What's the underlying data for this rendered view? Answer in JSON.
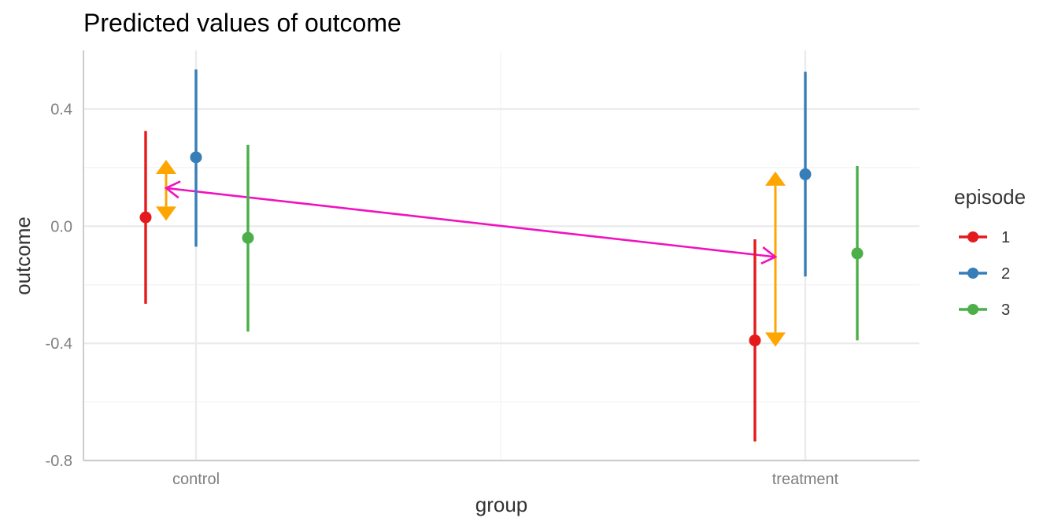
{
  "chart_data": {
    "type": "scatter",
    "title": "Predicted values of outcome",
    "xlabel": "group",
    "ylabel": "outcome",
    "categories": [
      "control",
      "treatment"
    ],
    "ylim": [
      -0.8,
      0.6
    ],
    "y_ticks": [
      -0.8,
      -0.4,
      0.0,
      0.4
    ],
    "y_tick_labels": [
      "-0.8",
      "-0.4",
      "0.0",
      "0.4"
    ],
    "grid": true,
    "legend": {
      "title": "episode",
      "position": "right"
    },
    "series": [
      {
        "name": "1",
        "color": "#E41A1C",
        "points": [
          {
            "category": "control",
            "y": 0.03,
            "low": -0.265,
            "high": 0.325
          },
          {
            "category": "treatment",
            "y": -0.39,
            "low": -0.735,
            "high": -0.045
          }
        ]
      },
      {
        "name": "2",
        "color": "#377EB8",
        "points": [
          {
            "category": "control",
            "y": 0.235,
            "low": -0.07,
            "high": 0.535
          },
          {
            "category": "treatment",
            "y": 0.177,
            "low": -0.172,
            "high": 0.527
          }
        ]
      },
      {
        "name": "3",
        "color": "#4DAF4A",
        "points": [
          {
            "category": "control",
            "y": -0.04,
            "low": -0.36,
            "high": 0.278
          },
          {
            "category": "treatment",
            "y": -0.093,
            "low": -0.39,
            "high": 0.205
          }
        ]
      }
    ],
    "annotations": {
      "orange_arrows": [
        {
          "category": "control",
          "from": 0.205,
          "to": 0.04,
          "color": "#FFA500"
        },
        {
          "category": "treatment",
          "from": 0.165,
          "to": -0.39,
          "color": "#FFA500"
        }
      ],
      "magenta_arrow": {
        "from": {
          "category": "control",
          "y": 0.13
        },
        "to": {
          "category": "treatment",
          "y": -0.105
        },
        "color": "#F012BE"
      }
    }
  }
}
